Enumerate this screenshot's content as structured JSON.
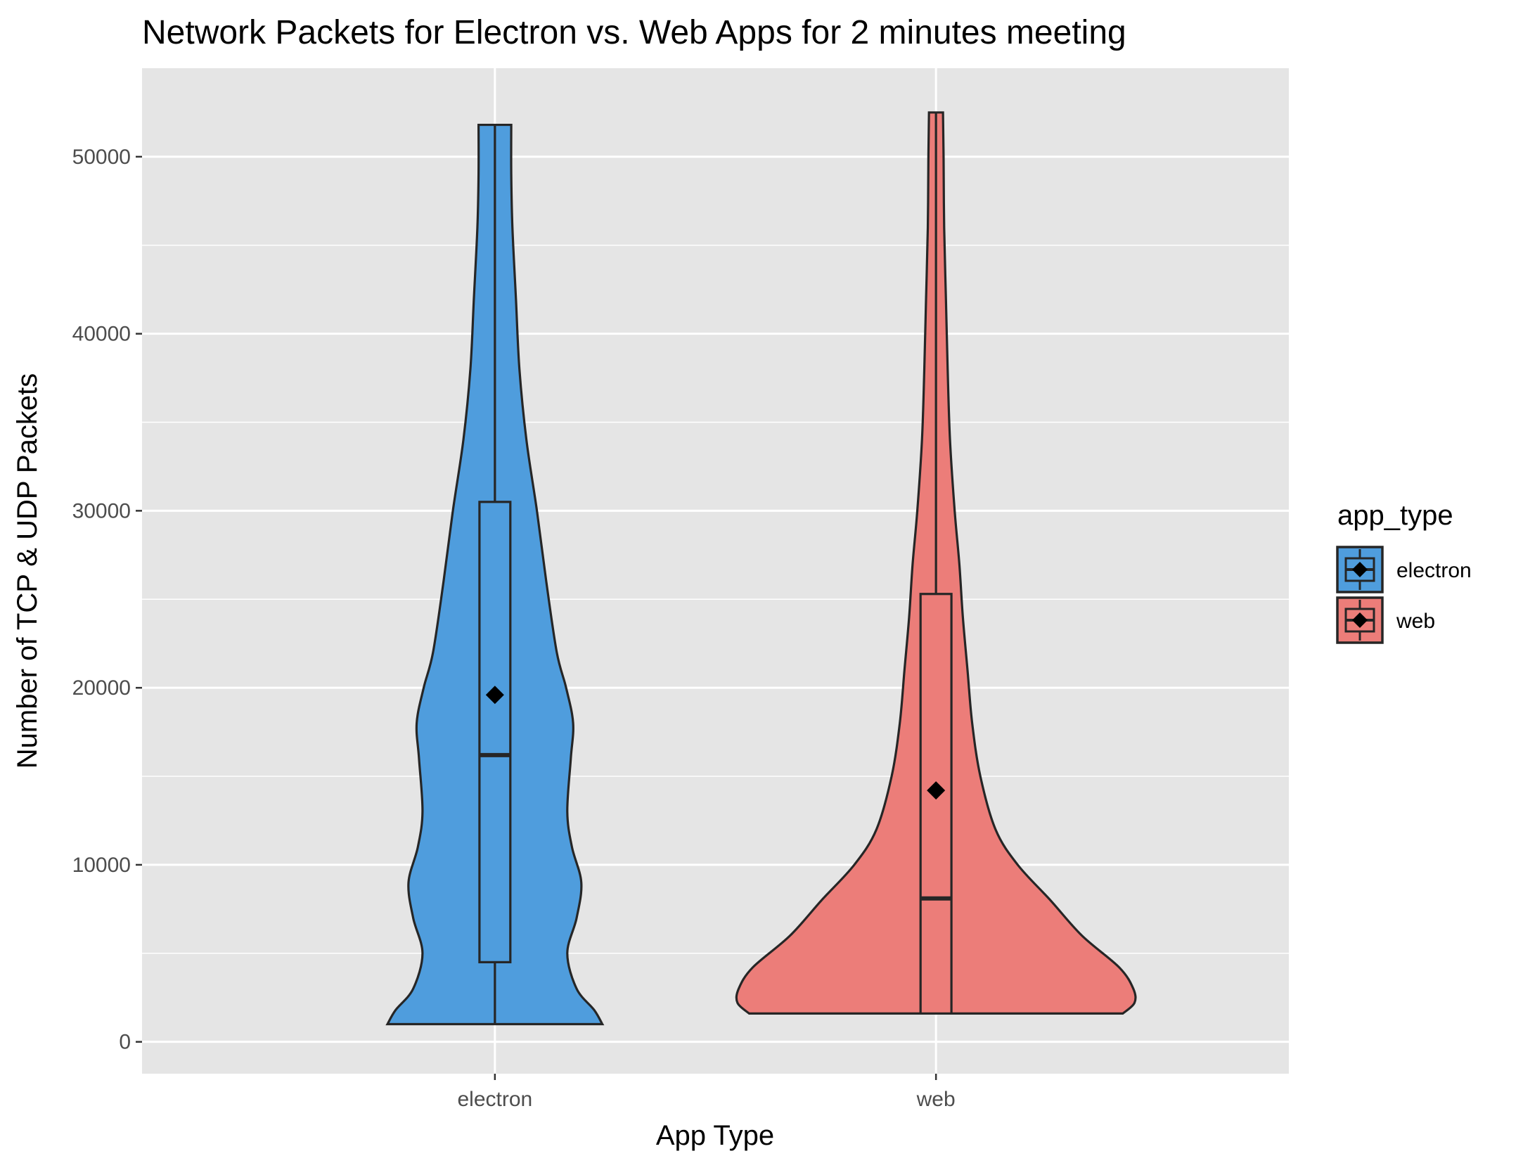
{
  "chart_data": {
    "type": "violin",
    "title": "Network Packets for Electron vs. Web Apps for 2 minutes meeting",
    "xlabel": "App Type",
    "ylabel": "Number of TCP & UDP Packets",
    "categories": [
      "electron",
      "web"
    ],
    "ylim": [
      -1800,
      55000
    ],
    "yticks": [
      0,
      10000,
      20000,
      30000,
      40000,
      50000
    ],
    "grid": true,
    "legend": {
      "title": "app_type",
      "position": "right",
      "entries": [
        "electron",
        "web"
      ]
    },
    "series": [
      {
        "name": "electron",
        "color": "#4f9ddd",
        "min": 1000,
        "max": 51800,
        "box": {
          "q1": 4500,
          "median": 16200,
          "q3": 30500,
          "whisker_low": 1000,
          "whisker_high": 51800
        },
        "mean": 19600,
        "density_profile": [
          [
            1000,
            0.92
          ],
          [
            1800,
            0.85
          ],
          [
            3000,
            0.7
          ],
          [
            5000,
            0.62
          ],
          [
            7000,
            0.7
          ],
          [
            9000,
            0.74
          ],
          [
            11000,
            0.66
          ],
          [
            13000,
            0.62
          ],
          [
            16000,
            0.65
          ],
          [
            18000,
            0.67
          ],
          [
            20000,
            0.61
          ],
          [
            22000,
            0.53
          ],
          [
            26000,
            0.44
          ],
          [
            30000,
            0.36
          ],
          [
            34000,
            0.27
          ],
          [
            38000,
            0.21
          ],
          [
            42000,
            0.18
          ],
          [
            46000,
            0.15
          ],
          [
            49000,
            0.14
          ],
          [
            51800,
            0.14
          ]
        ]
      },
      {
        "name": "web",
        "color": "#ec7d79",
        "min": 1600,
        "max": 52500,
        "box": {
          "q1": 1600,
          "median": 8100,
          "q3": 25300,
          "whisker_low": 1600,
          "whisker_high": 52500
        },
        "mean": 14200,
        "density_profile": [
          [
            1600,
            1.6
          ],
          [
            2200,
            1.7
          ],
          [
            3000,
            1.69
          ],
          [
            4200,
            1.57
          ],
          [
            6000,
            1.25
          ],
          [
            8000,
            0.98
          ],
          [
            10000,
            0.7
          ],
          [
            12000,
            0.51
          ],
          [
            15000,
            0.38
          ],
          [
            18000,
            0.31
          ],
          [
            21000,
            0.27
          ],
          [
            24000,
            0.23
          ],
          [
            27000,
            0.2
          ],
          [
            30000,
            0.16
          ],
          [
            34000,
            0.12
          ],
          [
            38000,
            0.1
          ],
          [
            42000,
            0.085
          ],
          [
            46000,
            0.07
          ],
          [
            50000,
            0.065
          ],
          [
            52500,
            0.06
          ]
        ]
      }
    ]
  }
}
